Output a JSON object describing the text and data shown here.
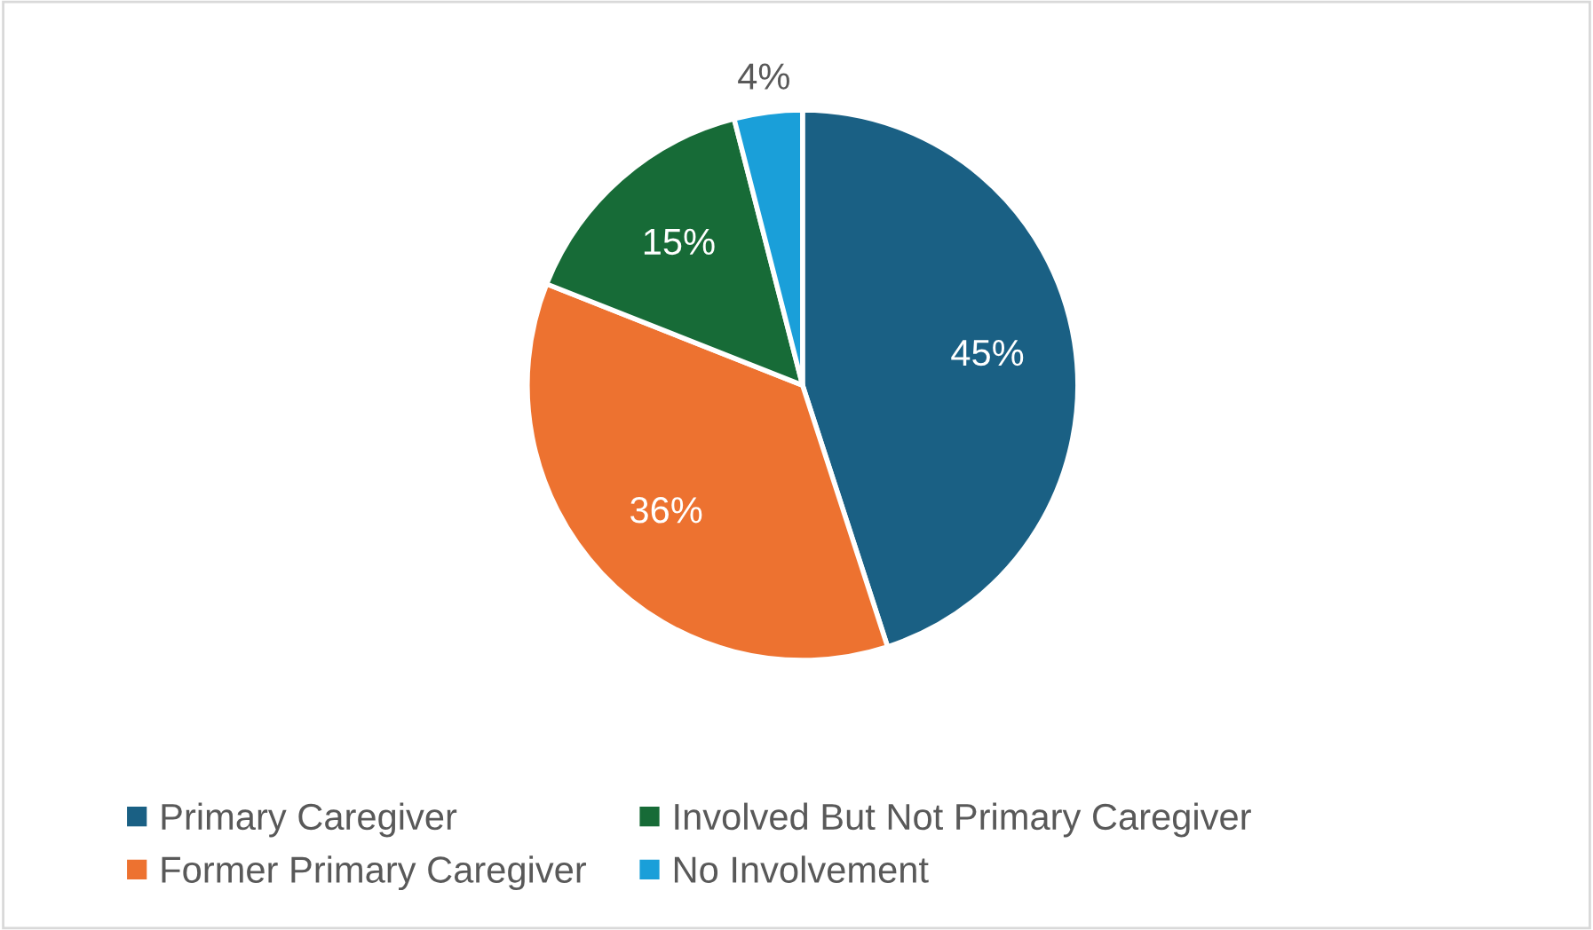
{
  "chart_data": {
    "type": "pie",
    "categories": [
      "Primary Caregiver",
      "Former Primary Caregiver",
      "Involved But Not Primary Caregiver",
      "No Involvement"
    ],
    "values": [
      45,
      36,
      15,
      4
    ],
    "value_labels": [
      "45%",
      "36%",
      "15%",
      "4%"
    ],
    "colors": [
      "#1a6084",
      "#ed7230",
      "#176b37",
      "#1a9fd9"
    ],
    "legend": "bottom"
  }
}
